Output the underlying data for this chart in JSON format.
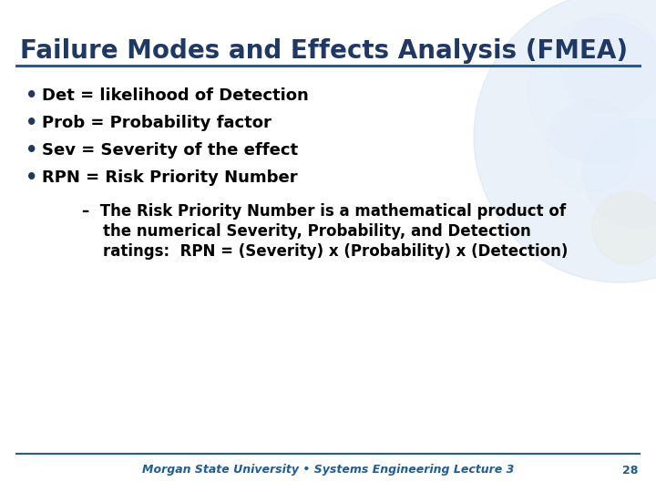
{
  "title": "Failure Modes and Effects Analysis (FMEA)",
  "title_color": "#1F3864",
  "title_fontsize": 20,
  "bg_color": "#FFFFFF",
  "header_line_color": "#1F5C99",
  "footer_line_color": "#1F5C99",
  "bullet_dot_color": "#1F3864",
  "bullet_text_color": "#000000",
  "bullets": [
    "Det = likelihood of Detection",
    "Prob = Probability factor",
    "Sev = Severity of the effect",
    "RPN = Risk Priority Number"
  ],
  "sub_bullet_line1": "–  The Risk Priority Number is a mathematical product of",
  "sub_bullet_line2": "    the numerical Severity, Probability, and Detection",
  "sub_bullet_line3": "    ratings:  RPN = (Severity) x (Probability) x (Detection)",
  "footer_text": "Morgan State University • Systems Engineering Lecture 3",
  "footer_page": "28",
  "footer_color": "#1F5C99",
  "footer_fontsize": 9,
  "bullet_fontsize": 13,
  "sub_bullet_fontsize": 12,
  "globe_color": "#C5D8EE",
  "globe_alpha": 0.35
}
